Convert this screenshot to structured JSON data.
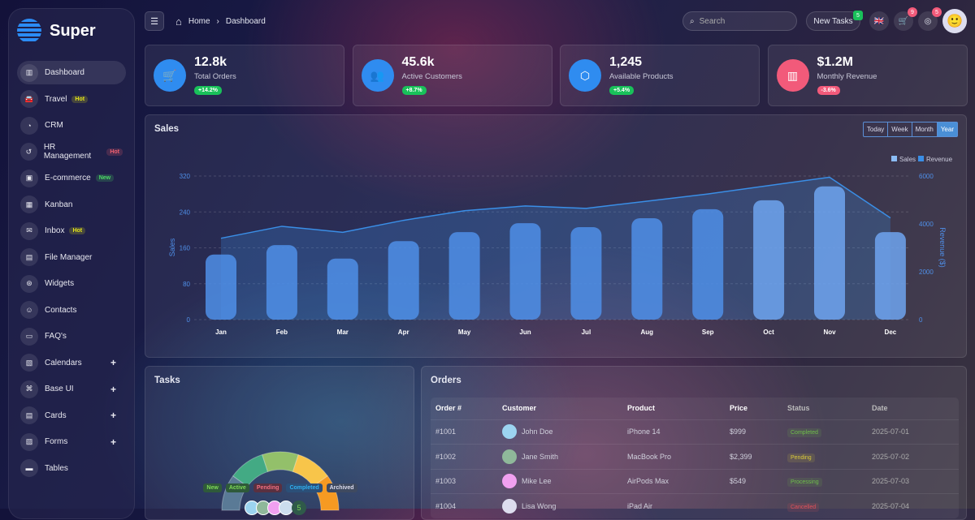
{
  "app": {
    "name": "Super"
  },
  "sidebar": {
    "items": [
      {
        "label": "Dashboard",
        "icon": "bar-chart-icon",
        "active": true
      },
      {
        "label": "Travel",
        "icon": "car-icon",
        "badge": "Hot",
        "badge_color": "#e3e31a"
      },
      {
        "label": "CRM",
        "icon": "pie-chart-icon"
      },
      {
        "label": "HR Management",
        "icon": "history-icon",
        "badge": "Hot",
        "badge_color": "#ef5f6f"
      },
      {
        "label": "E-commerce",
        "icon": "shopping-bag-icon",
        "badge": "New",
        "badge_color": "#4cd964"
      },
      {
        "label": "Kanban",
        "icon": "columns-icon"
      },
      {
        "label": "Inbox",
        "icon": "mail-icon",
        "badge": "Hot",
        "badge_color": "#e3e31a"
      },
      {
        "label": "File Manager",
        "icon": "folder-icon"
      },
      {
        "label": "Widgets",
        "icon": "widget-icon"
      },
      {
        "label": "Contacts",
        "icon": "contact-icon"
      },
      {
        "label": "FAQ's",
        "icon": "chat-icon"
      },
      {
        "label": "Calendars",
        "icon": "calendar-icon",
        "expand": "+"
      },
      {
        "label": "Base UI",
        "icon": "command-icon",
        "expand": "+"
      },
      {
        "label": "Cards",
        "icon": "card-icon",
        "expand": "+"
      },
      {
        "label": "Forms",
        "icon": "form-icon",
        "expand": "+"
      },
      {
        "label": "Tables",
        "icon": "table-icon"
      }
    ]
  },
  "header": {
    "breadcrumb": [
      "Home",
      "Dashboard"
    ],
    "search_placeholder": "Search",
    "new_tasks": "New Tasks",
    "new_tasks_count": "5",
    "cart_count": "9",
    "notif_count": "5"
  },
  "stats": [
    {
      "value": "12.8k",
      "label": "Total Orders",
      "change": "+14.2%",
      "icon": "cart-icon",
      "color": "#2f8cf0",
      "change_color": "#19c15a"
    },
    {
      "value": "45.6k",
      "label": "Active Customers",
      "change": "+8.7%",
      "icon": "users-icon",
      "color": "#2f8cf0",
      "change_color": "#19c15a"
    },
    {
      "value": "1,245",
      "label": "Available Products",
      "change": "+5.4%",
      "icon": "box-icon",
      "color": "#2f8cf0",
      "change_color": "#19c15a"
    },
    {
      "value": "$1.2M",
      "label": "Monthly Revenue",
      "change": "-3.6%",
      "icon": "report-icon",
      "color": "#f25a7a",
      "change_color": "#f25a7a"
    }
  ],
  "sales": {
    "title": "Sales",
    "ranges": [
      "Today",
      "Week",
      "Month",
      "Year"
    ],
    "selected_range": "Year"
  },
  "chart_data": {
    "type": "bar",
    "categories": [
      "Jan",
      "Feb",
      "Mar",
      "Apr",
      "May",
      "Jun",
      "Jul",
      "Aug",
      "Sep",
      "Oct",
      "Nov",
      "Dec"
    ],
    "series": [
      {
        "name": "Sales",
        "type": "bar",
        "axis": "left",
        "values": [
          145,
          166,
          136,
          175,
          195,
          215,
          206,
          226,
          246,
          266,
          297,
          195
        ],
        "color": "#4f8fe8"
      },
      {
        "name": "Revenue",
        "type": "area",
        "axis": "right",
        "values": [
          3400,
          3900,
          3650,
          4150,
          4550,
          4750,
          4650,
          4950,
          5250,
          5600,
          5950,
          4250
        ],
        "color": "#3a8ee6"
      }
    ],
    "ylabel": "Sales",
    "ylabel_right": "Revenue ($)",
    "ylim": [
      0,
      320
    ],
    "yticks": [
      0,
      80,
      160,
      240,
      320
    ],
    "ylim_right": [
      0,
      6000
    ],
    "yticks_right": [
      0,
      2000,
      4000,
      6000
    ],
    "legend": "top-right",
    "grid": true
  },
  "tasks": {
    "title": "Tasks",
    "legend": [
      {
        "label": "New",
        "color": "#7ed957",
        "bg": "#2f5a3a"
      },
      {
        "label": "Active",
        "color": "#7ed957",
        "bg": "#2f5a3a"
      },
      {
        "label": "Pending",
        "color": "#ef6f7f",
        "bg": "#5a3040"
      },
      {
        "label": "Completed",
        "color": "#2fb0f0",
        "bg": "#2b4f78"
      },
      {
        "label": "Archived",
        "color": "#dde",
        "bg": "#3f4a60"
      }
    ],
    "gauge_colors": [
      "#5a7a96",
      "#43aa84",
      "#93c06a",
      "#f8c54a",
      "#f69a22"
    ],
    "more_avatars": "5"
  },
  "orders": {
    "title": "Orders",
    "columns": [
      "Order #",
      "Customer",
      "Product",
      "Price",
      "Status",
      "Date"
    ],
    "rows": [
      {
        "id": "#1001",
        "customer": "John Doe",
        "product": "iPhone 14",
        "price": "$999",
        "status": "Completed",
        "status_color": "#6fbf4a",
        "date": "2025-07-01"
      },
      {
        "id": "#1002",
        "customer": "Jane Smith",
        "product": "MacBook Pro",
        "price": "$2,399",
        "status": "Pending",
        "status_color": "#d9c93a",
        "date": "2025-07-02"
      },
      {
        "id": "#1003",
        "customer": "Mike Lee",
        "product": "AirPods Max",
        "price": "$549",
        "status": "Processing",
        "status_color": "#6fbf4a",
        "date": "2025-07-03"
      },
      {
        "id": "#1004",
        "customer": "Lisa Wong",
        "product": "iPad Air",
        "price": "",
        "status": "Cancelled",
        "status_color": "#e0505a",
        "date": "2025-07-04"
      }
    ]
  }
}
